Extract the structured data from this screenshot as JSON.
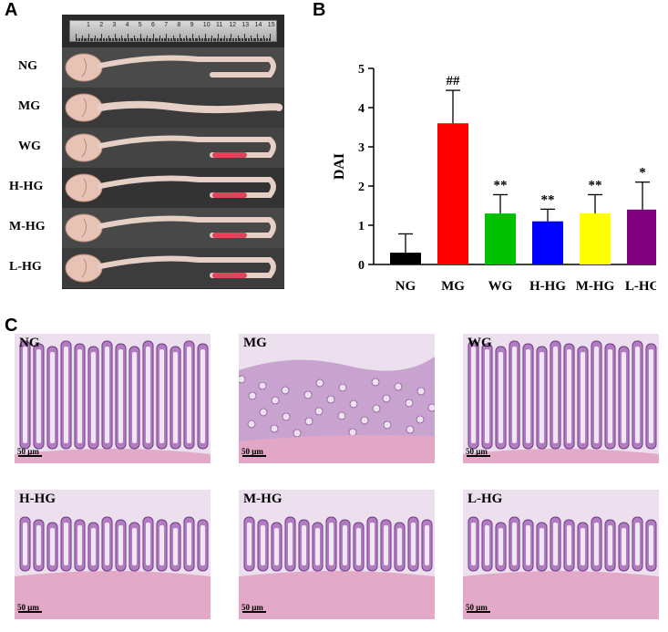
{
  "panels": {
    "a": "A",
    "b": "B",
    "c": "C"
  },
  "panel_a": {
    "groups": [
      "NG",
      "MG",
      "WG",
      "H-HG",
      "M-HG",
      "L-HG"
    ],
    "ruler_numbers": [
      "1",
      "2",
      "3",
      "4",
      "5",
      "6",
      "7",
      "8",
      "9",
      "10",
      "11",
      "12",
      "13",
      "14",
      "15"
    ]
  },
  "chart_data": {
    "type": "bar",
    "categories": [
      "NG",
      "MG",
      "WG",
      "H-HG",
      "M-HG",
      "L-HG"
    ],
    "values": [
      0.3,
      3.6,
      1.3,
      1.1,
      1.3,
      1.4
    ],
    "errors": [
      0.48,
      0.84,
      0.48,
      0.31,
      0.48,
      0.7
    ],
    "significance": [
      "",
      "##",
      "**",
      "**",
      "**",
      "*"
    ],
    "colors": [
      "#000000",
      "#ff0000",
      "#00c000",
      "#0000ff",
      "#ffff00",
      "#800080"
    ],
    "title": "",
    "xlabel": "",
    "ylabel": "DAI",
    "ylim": [
      0,
      5
    ],
    "yticks": [
      0,
      1,
      2,
      3,
      4,
      5
    ],
    "grid": false
  },
  "panel_c": {
    "images": [
      {
        "label": "NG",
        "scale": "50 μm"
      },
      {
        "label": "MG",
        "scale": "50 μm"
      },
      {
        "label": "WG",
        "scale": "50 μm"
      },
      {
        "label": "H-HG",
        "scale": "50 μm"
      },
      {
        "label": "M-HG",
        "scale": "50 μm"
      },
      {
        "label": "L-HG",
        "scale": "50 μm"
      }
    ]
  }
}
